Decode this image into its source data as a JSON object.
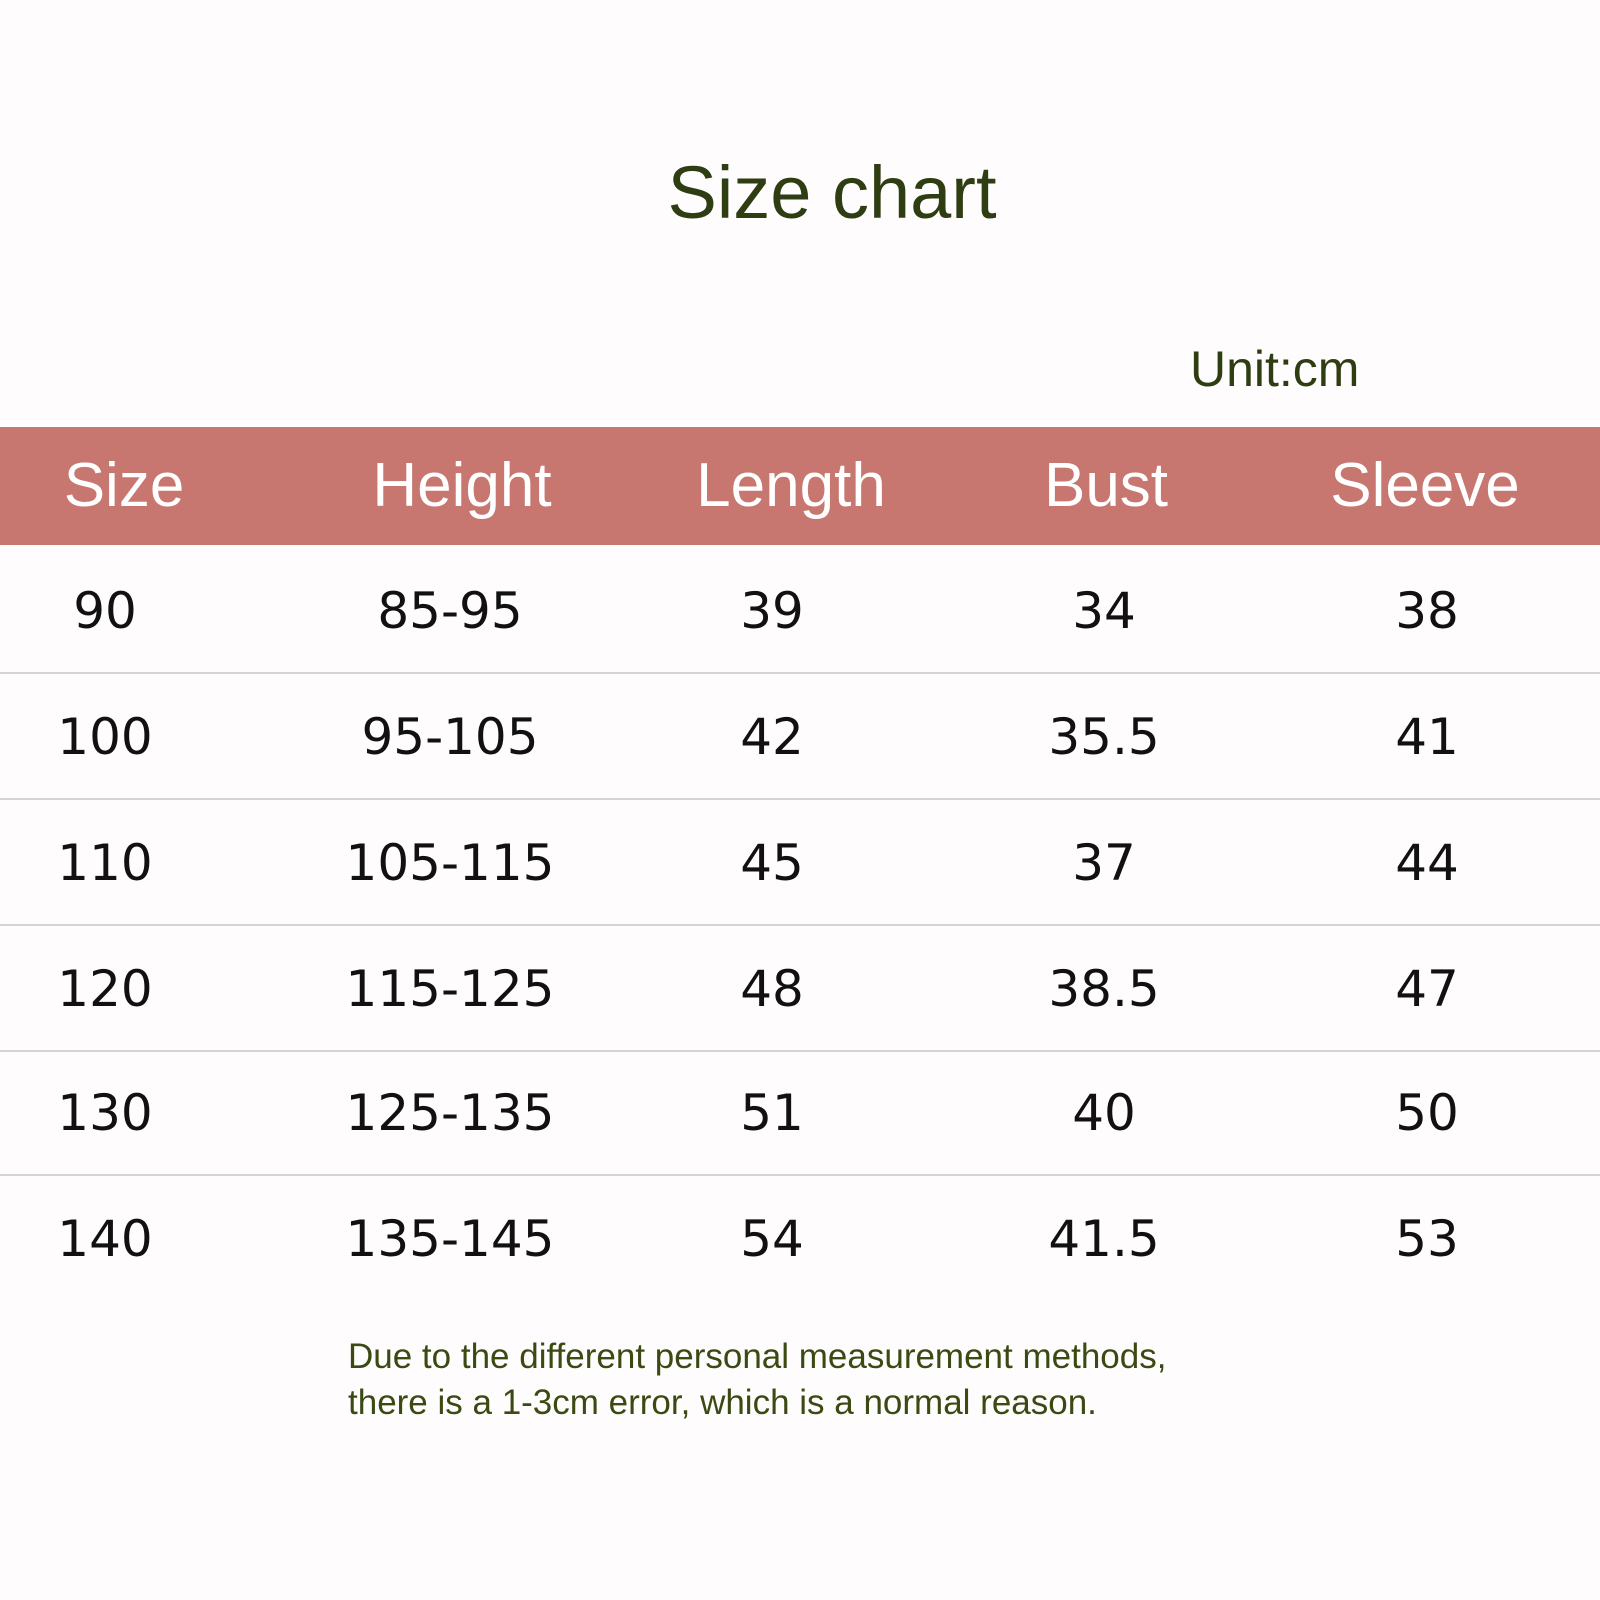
{
  "title": "Size chart",
  "unit": "Unit:cm",
  "colors": {
    "header_bg": "#c77670",
    "title_text": "#2f3d12"
  },
  "table": {
    "headers": [
      "Size",
      "Height",
      "Length",
      "Bust",
      "Sleeve"
    ],
    "rows": [
      [
        "90",
        "85-95",
        "39",
        "34",
        "38"
      ],
      [
        "100",
        "95-105",
        "42",
        "35.5",
        "41"
      ],
      [
        "110",
        "105-115",
        "45",
        "37",
        "44"
      ],
      [
        "120",
        "115-125",
        "48",
        "38.5",
        "47"
      ],
      [
        "130",
        "125-135",
        "51",
        "40",
        "50"
      ],
      [
        "140",
        "135-145",
        "54",
        "41.5",
        "53"
      ]
    ]
  },
  "note": {
    "line1": "Due to the different personal measurement methods,",
    "line2": "there is a 1-3cm error, which is a normal reason."
  }
}
